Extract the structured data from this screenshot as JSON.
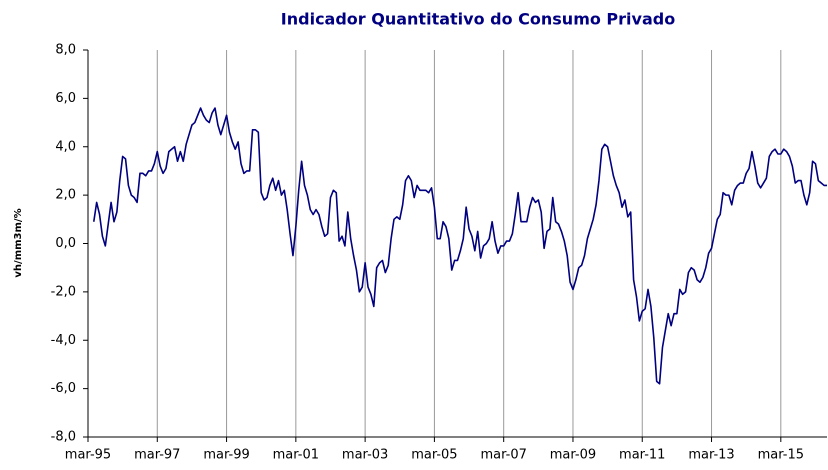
{
  "chart_data": {
    "type": "line",
    "title": "Indicador Quantitativo do Consumo Privado",
    "ylabel": "vh/mm3m/%",
    "color": "#000080",
    "grid": true,
    "ylim": [
      -8,
      8
    ],
    "yticks": [
      {
        "value": -8,
        "label": "-8,0"
      },
      {
        "value": -6,
        "label": "-6,0"
      },
      {
        "value": -4,
        "label": "-4,0"
      },
      {
        "value": -2,
        "label": "-2,0"
      },
      {
        "value": 0,
        "label": "0,0"
      },
      {
        "value": 2,
        "label": "2,0"
      },
      {
        "value": 4,
        "label": "4,0"
      },
      {
        "value": 6,
        "label": "6,0"
      },
      {
        "value": 8,
        "label": "8,0"
      }
    ],
    "categories": [
      "mar-95",
      null,
      null,
      null,
      null,
      null,
      null,
      null,
      null,
      null,
      null,
      null,
      null,
      null,
      null,
      null,
      null,
      null,
      null,
      null,
      null,
      null,
      null,
      null,
      "mar-97",
      null,
      null,
      null,
      null,
      null,
      null,
      null,
      null,
      null,
      null,
      null,
      null,
      null,
      null,
      null,
      null,
      null,
      null,
      null,
      null,
      null,
      null,
      null,
      "mar-99",
      null,
      null,
      null,
      null,
      null,
      null,
      null,
      null,
      null,
      null,
      null,
      null,
      null,
      null,
      null,
      null,
      null,
      null,
      null,
      null,
      null,
      null,
      null,
      "mar-01",
      null,
      null,
      null,
      null,
      null,
      null,
      null,
      null,
      null,
      null,
      null,
      null,
      null,
      null,
      null,
      null,
      null,
      null,
      null,
      null,
      null,
      null,
      null,
      "mar-03",
      null,
      null,
      null,
      null,
      null,
      null,
      null,
      null,
      null,
      null,
      null,
      null,
      null,
      null,
      null,
      null,
      null,
      null,
      null,
      null,
      null,
      null,
      null,
      "mar-05",
      null,
      null,
      null,
      null,
      null,
      null,
      null,
      null,
      null,
      null,
      null,
      null,
      null,
      null,
      null,
      null,
      null,
      null,
      null,
      null,
      null,
      null,
      null,
      "mar-07",
      null,
      null,
      null,
      null,
      null,
      null,
      null,
      null,
      null,
      null,
      null,
      null,
      null,
      null,
      null,
      null,
      null,
      null,
      null,
      null,
      null,
      null,
      null,
      "mar-09",
      null,
      null,
      null,
      null,
      null,
      null,
      null,
      null,
      null,
      null,
      null,
      null,
      null,
      null,
      null,
      null,
      null,
      null,
      null,
      null,
      null,
      null,
      null,
      "mar-11",
      null,
      null,
      null,
      null,
      null,
      null,
      null,
      null,
      null,
      null,
      null,
      null,
      null,
      null,
      null,
      null,
      null,
      null,
      null,
      null,
      null,
      null,
      null,
      "mar-13",
      null,
      null,
      null,
      null,
      null,
      null,
      null,
      null,
      null,
      null,
      null,
      null,
      null,
      null,
      null,
      null,
      null,
      null,
      null,
      null,
      null,
      null,
      null,
      "mar-15",
      null,
      null,
      null,
      null,
      null,
      null,
      null,
      null,
      null,
      null,
      null,
      null,
      null,
      null,
      null,
      null
    ],
    "values": [
      null,
      null,
      0.9,
      1.7,
      1.2,
      0.3,
      -0.1,
      0.8,
      1.7,
      0.9,
      1.3,
      2.6,
      3.6,
      3.5,
      2.4,
      2.0,
      1.9,
      1.7,
      2.9,
      2.9,
      2.8,
      3.0,
      3.0,
      3.3,
      3.8,
      3.2,
      2.9,
      3.1,
      3.8,
      3.9,
      4.0,
      3.4,
      3.8,
      3.4,
      4.1,
      4.5,
      4.9,
      5.0,
      5.3,
      5.6,
      5.3,
      5.1,
      5.0,
      5.4,
      5.6,
      4.9,
      4.5,
      4.9,
      5.3,
      4.6,
      4.2,
      3.9,
      4.2,
      3.3,
      2.9,
      3.0,
      3.0,
      4.7,
      4.7,
      4.6,
      2.1,
      1.8,
      1.9,
      2.4,
      2.7,
      2.2,
      2.6,
      2.0,
      2.2,
      1.4,
      0.4,
      -0.5,
      0.7,
      2.2,
      3.4,
      2.4,
      2.0,
      1.4,
      1.2,
      1.4,
      1.2,
      0.7,
      0.3,
      0.4,
      1.9,
      2.2,
      2.1,
      0.1,
      0.3,
      -0.1,
      1.3,
      0.2,
      -0.5,
      -1.1,
      -2.0,
      -1.8,
      -0.8,
      -1.8,
      -2.1,
      -2.6,
      -1.0,
      -0.8,
      -0.7,
      -1.2,
      -0.9,
      0.2,
      1.0,
      1.1,
      1.0,
      1.6,
      2.6,
      2.8,
      2.6,
      1.9,
      2.4,
      2.2,
      2.2,
      2.2,
      2.1,
      2.3,
      1.5,
      0.2,
      0.2,
      0.9,
      0.7,
      0.2,
      -1.1,
      -0.7,
      -0.7,
      -0.3,
      0.2,
      1.5,
      0.6,
      0.3,
      -0.3,
      0.5,
      -0.6,
      -0.1,
      0.0,
      0.2,
      0.9,
      0.1,
      -0.4,
      -0.1,
      -0.1,
      0.1,
      0.1,
      0.4,
      1.2,
      2.1,
      0.9,
      0.9,
      0.9,
      1.5,
      1.9,
      1.7,
      1.8,
      1.3,
      -0.2,
      0.5,
      0.6,
      1.9,
      0.9,
      0.8,
      0.5,
      0.1,
      -0.5,
      -1.6,
      -1.9,
      -1.5,
      -1.0,
      -0.9,
      -0.5,
      0.2,
      0.6,
      1.0,
      1.6,
      2.6,
      3.9,
      4.1,
      4.0,
      3.4,
      2.8,
      2.4,
      2.1,
      1.5,
      1.8,
      1.1,
      1.3,
      -1.5,
      -2.2,
      -3.2,
      -2.8,
      -2.7,
      -1.9,
      -2.6,
      -3.9,
      -5.7,
      -5.8,
      -4.3,
      -3.6,
      -2.9,
      -3.4,
      -2.9,
      -2.9,
      -1.9,
      -2.1,
      -2.0,
      -1.2,
      -1.0,
      -1.1,
      -1.5,
      -1.6,
      -1.4,
      -1.0,
      -0.4,
      -0.2,
      0.4,
      1.0,
      1.2,
      2.1,
      2.0,
      2.0,
      1.6,
      2.2,
      2.4,
      2.5,
      2.5,
      2.9,
      3.1,
      3.8,
      3.2,
      2.5,
      2.3,
      2.5,
      2.7,
      3.6,
      3.8,
      3.9,
      3.7,
      3.7,
      3.9,
      3.8,
      3.6,
      3.2,
      2.5,
      2.6,
      2.6,
      2.0,
      1.6,
      2.1,
      3.4,
      3.3,
      2.6,
      2.5,
      2.4,
      2.4
    ]
  }
}
